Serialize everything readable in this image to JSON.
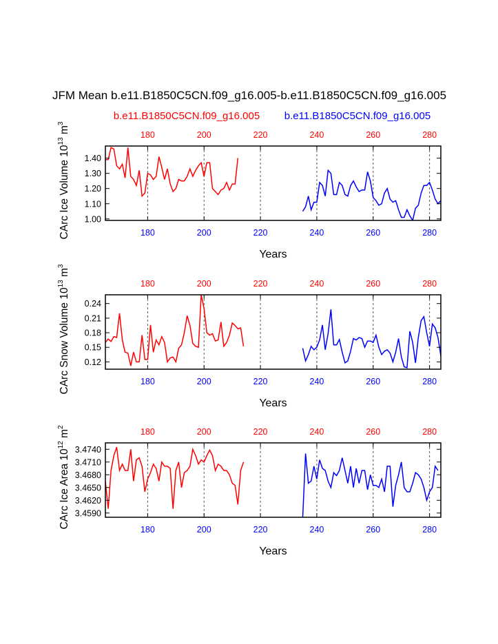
{
  "title": "JFM Mean b.e11.B1850C5CN.f09_g16.005-b.e11.B1850C5CN.f09_g16.005",
  "legend": {
    "case1": "b.e11.B1850C5CN.f09_g16.005",
    "case2": "b.e11.B1850C5CN.f09_g16.005"
  },
  "colors": {
    "case1": "#ff0000",
    "case2": "#0000ff",
    "frame": "#000000",
    "grid": "#555555"
  },
  "chart_data": [
    {
      "type": "line",
      "ylabel": "CArc Ice Volume 10^13 m^3",
      "ylabel_base": "CArc Ice Volume 10",
      "ylabel_exp": "13",
      "ylabel_unit": "m",
      "ylabel_unit_exp": "3",
      "xlabel": "Years",
      "xlim": [
        165,
        284
      ],
      "ylim": [
        0.99,
        1.48
      ],
      "yticks": [
        "1.00",
        "1.10",
        "1.20",
        "1.30",
        "1.40"
      ],
      "top_ticks": [
        "180",
        "200",
        "220",
        "240",
        "260",
        "280"
      ],
      "bottom_ticks": [
        "180",
        "200",
        "220",
        "240",
        "260",
        "280"
      ],
      "grid_x": [
        180,
        200,
        220,
        240,
        260,
        280
      ],
      "series": [
        {
          "x_start": 165,
          "values": [
            1.39,
            1.39,
            1.47,
            1.46,
            1.35,
            1.33,
            1.36,
            1.27,
            1.47,
            1.28,
            1.26,
            1.22,
            1.32,
            1.15,
            1.17,
            1.3,
            1.29,
            1.26,
            1.28,
            1.41,
            1.34,
            1.26,
            1.33,
            1.23,
            1.18,
            1.2,
            1.26,
            1.25,
            1.25,
            1.28,
            1.33,
            1.28,
            1.32,
            1.35,
            1.37,
            1.28,
            1.37,
            1.37,
            1.2,
            1.18,
            1.16,
            1.19,
            1.2,
            1.24,
            1.19,
            1.23,
            1.23,
            1.4
          ]
        },
        {
          "x_start": 235,
          "values": [
            1.05,
            1.08,
            1.15,
            1.06,
            1.11,
            1.11,
            1.24,
            1.22,
            1.15,
            1.32,
            1.3,
            1.16,
            1.16,
            1.24,
            1.22,
            1.16,
            1.15,
            1.22,
            1.25,
            1.21,
            1.18,
            1.19,
            1.19,
            1.31,
            1.25,
            1.14,
            1.12,
            1.09,
            1.1,
            1.17,
            1.2,
            1.13,
            1.11,
            1.12,
            1.06,
            1.01,
            1.01,
            1.06,
            1.02,
            0.99,
            1.07,
            1.09,
            1.17,
            1.22,
            1.22,
            1.24,
            1.19,
            1.13,
            1.1,
            1.12
          ]
        }
      ]
    },
    {
      "type": "line",
      "ylabel": "CArc Snow Volume 10^13 m^3",
      "ylabel_base": "CArc Snow Volume 10",
      "ylabel_exp": "13",
      "ylabel_unit": "m",
      "ylabel_unit_exp": "3",
      "xlabel": "Years",
      "xlim": [
        165,
        284
      ],
      "ylim": [
        0.105,
        0.258
      ],
      "yticks": [
        "0.12",
        "0.15",
        "0.18",
        "0.21",
        "0.24"
      ],
      "top_ticks": [
        "180",
        "200",
        "220",
        "240",
        "260",
        "280"
      ],
      "bottom_ticks": [
        "180",
        "200",
        "220",
        "240",
        "260",
        "280"
      ],
      "grid_x": [
        180,
        200,
        220,
        240,
        260,
        280
      ],
      "series": [
        {
          "x_start": 165,
          "values": [
            0.16,
            0.167,
            0.162,
            0.172,
            0.17,
            0.22,
            0.165,
            0.14,
            0.138,
            0.112,
            0.14,
            0.12,
            0.12,
            0.175,
            0.125,
            0.125,
            0.196,
            0.14,
            0.165,
            0.155,
            0.172,
            0.16,
            0.12,
            0.128,
            0.13,
            0.12,
            0.148,
            0.155,
            0.18,
            0.215,
            0.195,
            0.158,
            0.152,
            0.15,
            0.258,
            0.23,
            0.18,
            0.175,
            0.178,
            0.163,
            0.165,
            0.202,
            0.152,
            0.16,
            0.175,
            0.2,
            0.195,
            0.188,
            0.19,
            0.152
          ]
        },
        {
          "x_start": 235,
          "values": [
            0.148,
            0.122,
            0.135,
            0.152,
            0.145,
            0.15,
            0.165,
            0.196,
            0.145,
            0.178,
            0.228,
            0.155,
            0.155,
            0.166,
            0.14,
            0.118,
            0.122,
            0.142,
            0.168,
            0.165,
            0.17,
            0.168,
            0.15,
            0.163,
            0.163,
            0.16,
            0.175,
            0.15,
            0.135,
            0.142,
            0.145,
            0.138,
            0.12,
            0.14,
            0.168,
            0.13,
            0.11,
            0.108,
            0.183,
            0.16,
            0.118,
            0.17,
            0.205,
            0.213,
            0.18,
            0.152,
            0.198,
            0.19,
            0.17,
            0.132,
            0.165
          ]
        }
      ]
    },
    {
      "type": "line",
      "ylabel": "CArc Ice Area 10^12 m^2",
      "ylabel_base": "CArc Ice Area 10",
      "ylabel_exp": "12",
      "ylabel_unit": "m",
      "ylabel_unit_exp": "2",
      "xlabel": "Years",
      "xlim": [
        165,
        284
      ],
      "ylim": [
        3.458,
        3.4755
      ],
      "yticks": [
        "3.4590",
        "3.4620",
        "3.4650",
        "3.4680",
        "3.4710",
        "3.4740"
      ],
      "top_ticks": [
        "180",
        "200",
        "220",
        "240",
        "260",
        "280"
      ],
      "bottom_ticks": [
        "180",
        "200",
        "220",
        "240",
        "260",
        "280"
      ],
      "grid_x": [
        180,
        200,
        220,
        240,
        260,
        280
      ],
      "series": [
        {
          "x_start": 165,
          "values": [
            3.4665,
            3.46,
            3.469,
            3.4725,
            3.4745,
            3.469,
            3.4705,
            3.469,
            3.469,
            3.474,
            3.4665,
            3.4715,
            3.472,
            3.47,
            3.464,
            3.467,
            3.4685,
            3.4705,
            3.4695,
            3.4665,
            3.471,
            3.47,
            3.47,
            3.4695,
            3.46,
            3.469,
            3.471,
            3.465,
            3.4685,
            3.469,
            3.47,
            3.474,
            3.4725,
            3.4705,
            3.4715,
            3.471,
            3.4725,
            3.4738,
            3.4725,
            3.469,
            3.4705,
            3.47,
            3.469,
            3.469,
            3.468,
            3.466,
            3.4655,
            3.461,
            3.469,
            3.471
          ]
        },
        {
          "x_start": 235,
          "values": [
            3.458,
            3.473,
            3.466,
            3.4665,
            3.47,
            3.467,
            3.4715,
            3.4695,
            3.469,
            3.4665,
            3.465,
            3.4685,
            3.4678,
            3.469,
            3.472,
            3.469,
            3.466,
            3.47,
            3.465,
            3.4695,
            3.466,
            3.469,
            3.469,
            3.4645,
            3.468,
            3.4655,
            3.4655,
            3.465,
            3.467,
            3.464,
            3.47,
            3.47,
            3.4605,
            3.4655,
            3.468,
            3.471,
            3.465,
            3.464,
            3.464,
            3.466,
            3.4685,
            3.468,
            3.467,
            3.465,
            3.462,
            3.464,
            3.465,
            3.47,
            3.469
          ]
        }
      ]
    }
  ]
}
